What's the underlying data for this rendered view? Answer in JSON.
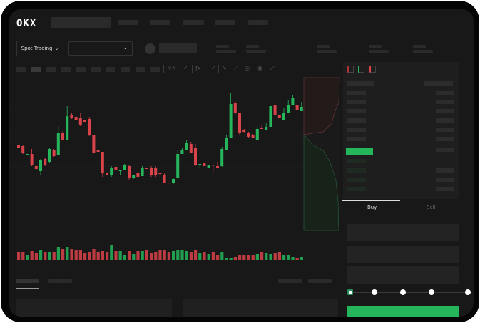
{
  "header": {
    "logo": "OKX"
  },
  "market_bar": {
    "mode_button": "Spot Trading",
    "mode_chevron": "⌄",
    "pair_chevron": "⌄"
  },
  "order_form": {
    "tabs": [
      {
        "label": "Buy",
        "active": true
      },
      {
        "label": "Sell",
        "active": false
      }
    ],
    "leverage_slider": {
      "steps": 5,
      "selected_index": 0
    }
  },
  "colors": {
    "up": "#25b65b",
    "down": "#d9434a",
    "background": "#181818",
    "panel": "#1e1e1e"
  },
  "toolbar": {
    "icons": [
      "indicator-icon",
      "check-icon",
      "fx-icon",
      "check-icon",
      "line-icon",
      "draw-icon",
      "camera-icon",
      "target-icon",
      "fullscreen-icon"
    ],
    "glyphs": [
      "⋎⋏",
      "✓",
      "ƒx",
      "✓",
      "∿",
      "⟋",
      "◎",
      "◉",
      "⤢"
    ]
  },
  "chart_data": {
    "type": "candlestick",
    "grid": true,
    "candles": [
      [
        97,
        97,
        93,
        93
      ],
      [
        96,
        98,
        85,
        86
      ],
      [
        83,
        85,
        83,
        85
      ],
      [
        85,
        92,
        68,
        70
      ],
      [
        68,
        70,
        62,
        64
      ],
      [
        61,
        78,
        56,
        77
      ],
      [
        78,
        79,
        68,
        69
      ],
      [
        74,
        94,
        73,
        92
      ],
      [
        91,
        92,
        81,
        82
      ],
      [
        84,
        124,
        84,
        115
      ],
      [
        114,
        117,
        104,
        104
      ],
      [
        105,
        152,
        105,
        138
      ],
      [
        140,
        142,
        134,
        135
      ],
      [
        137,
        140,
        132,
        133
      ],
      [
        136,
        142,
        124,
        125
      ],
      [
        133,
        133,
        130,
        130
      ],
      [
        134,
        137,
        110,
        111
      ],
      [
        111,
        112,
        86,
        87
      ],
      [
        91,
        93,
        86,
        88
      ],
      [
        88,
        88,
        53,
        58
      ],
      [
        58,
        59,
        55,
        55
      ],
      [
        56,
        68,
        53,
        66
      ],
      [
        67,
        69,
        60,
        62
      ],
      [
        61,
        63,
        56,
        63
      ],
      [
        63,
        71,
        63,
        69
      ],
      [
        68,
        69,
        48,
        52
      ],
      [
        51,
        55,
        50,
        55
      ],
      [
        58,
        58,
        50,
        53
      ],
      [
        54,
        68,
        54,
        65
      ],
      [
        66,
        66,
        64,
        64
      ],
      [
        66,
        68,
        53,
        56
      ],
      [
        66,
        68,
        53,
        56
      ],
      [
        58,
        58,
        57,
        57
      ],
      [
        56,
        59,
        44,
        44
      ],
      [
        45,
        45,
        44,
        44
      ],
      [
        44,
        52,
        43,
        50
      ],
      [
        52,
        90,
        51,
        85
      ],
      [
        85,
        93,
        85,
        90
      ],
      [
        90,
        105,
        90,
        100
      ],
      [
        99,
        102,
        87,
        87
      ],
      [
        94,
        99,
        68,
        70
      ],
      [
        69,
        71,
        65,
        71
      ],
      [
        72,
        72,
        68,
        68
      ],
      [
        65,
        69,
        65,
        69
      ],
      [
        70,
        71,
        59,
        69
      ],
      [
        68,
        74,
        66,
        66
      ],
      [
        68,
        95,
        67,
        92
      ],
      [
        90,
        111,
        90,
        108
      ],
      [
        108,
        171,
        107,
        155
      ],
      [
        157,
        159,
        140,
        143
      ],
      [
        143,
        143,
        111,
        115
      ],
      [
        118,
        120,
        114,
        116
      ],
      [
        115,
        116,
        107,
        109
      ],
      [
        111,
        113,
        108,
        108
      ],
      [
        105,
        124,
        105,
        120
      ],
      [
        122,
        126,
        120,
        120
      ],
      [
        118,
        128,
        118,
        123
      ],
      [
        123,
        152,
        123,
        152
      ],
      [
        154,
        154,
        139,
        140
      ],
      [
        140,
        140,
        135,
        135
      ],
      [
        133,
        150,
        133,
        143
      ],
      [
        143,
        161,
        143,
        154
      ],
      [
        154,
        168,
        154,
        163
      ],
      [
        154,
        154,
        144,
        147
      ],
      [
        145,
        158,
        145,
        151
      ]
    ],
    "volume": [
      12,
      12,
      8,
      13,
      10,
      15,
      12,
      12,
      12,
      19,
      16,
      19,
      16,
      14,
      14,
      10,
      12,
      16,
      12,
      13,
      11,
      21,
      13,
      13,
      8,
      13,
      9,
      13,
      13,
      14,
      10,
      12,
      14,
      14,
      11,
      13,
      14,
      15,
      13,
      11,
      14,
      10,
      12,
      9,
      11,
      8,
      12,
      3,
      3,
      5,
      8,
      7,
      8,
      7,
      9,
      12,
      10,
      9,
      10,
      11,
      8,
      7,
      4,
      3,
      5
    ]
  }
}
